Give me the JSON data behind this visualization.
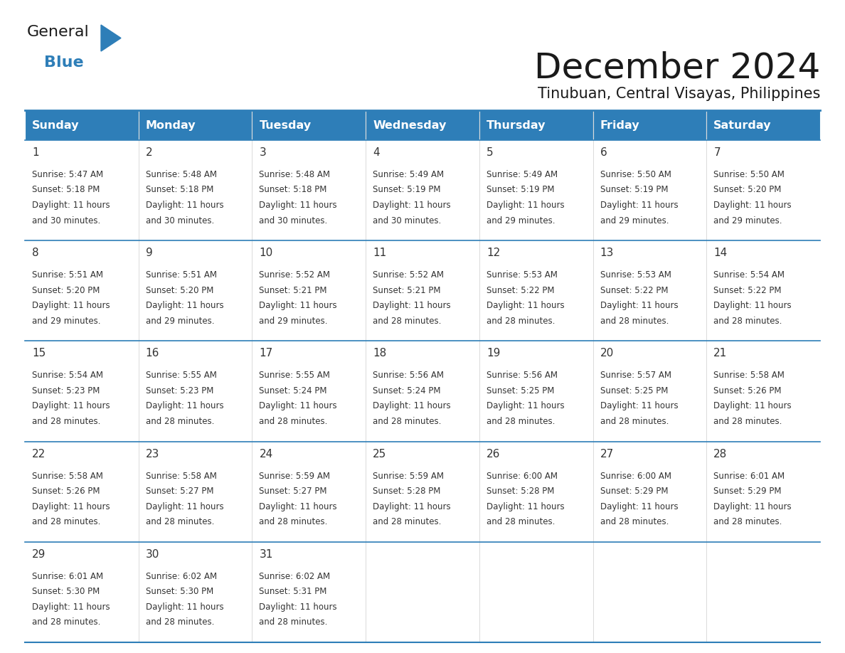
{
  "title": "December 2024",
  "subtitle": "Tinubuan, Central Visayas, Philippines",
  "days_of_week": [
    "Sunday",
    "Monday",
    "Tuesday",
    "Wednesday",
    "Thursday",
    "Friday",
    "Saturday"
  ],
  "header_bg": "#2E7EB8",
  "header_text": "#FFFFFF",
  "border_color": "#2E7EB8",
  "text_color": "#333333",
  "calendar": [
    [
      {
        "day": 1,
        "sunrise": "5:47 AM",
        "sunset": "5:18 PM",
        "daylight": "11 hours and 30 minutes."
      },
      {
        "day": 2,
        "sunrise": "5:48 AM",
        "sunset": "5:18 PM",
        "daylight": "11 hours and 30 minutes."
      },
      {
        "day": 3,
        "sunrise": "5:48 AM",
        "sunset": "5:18 PM",
        "daylight": "11 hours and 30 minutes."
      },
      {
        "day": 4,
        "sunrise": "5:49 AM",
        "sunset": "5:19 PM",
        "daylight": "11 hours and 30 minutes."
      },
      {
        "day": 5,
        "sunrise": "5:49 AM",
        "sunset": "5:19 PM",
        "daylight": "11 hours and 29 minutes."
      },
      {
        "day": 6,
        "sunrise": "5:50 AM",
        "sunset": "5:19 PM",
        "daylight": "11 hours and 29 minutes."
      },
      {
        "day": 7,
        "sunrise": "5:50 AM",
        "sunset": "5:20 PM",
        "daylight": "11 hours and 29 minutes."
      }
    ],
    [
      {
        "day": 8,
        "sunrise": "5:51 AM",
        "sunset": "5:20 PM",
        "daylight": "11 hours and 29 minutes."
      },
      {
        "day": 9,
        "sunrise": "5:51 AM",
        "sunset": "5:20 PM",
        "daylight": "11 hours and 29 minutes."
      },
      {
        "day": 10,
        "sunrise": "5:52 AM",
        "sunset": "5:21 PM",
        "daylight": "11 hours and 29 minutes."
      },
      {
        "day": 11,
        "sunrise": "5:52 AM",
        "sunset": "5:21 PM",
        "daylight": "11 hours and 28 minutes."
      },
      {
        "day": 12,
        "sunrise": "5:53 AM",
        "sunset": "5:22 PM",
        "daylight": "11 hours and 28 minutes."
      },
      {
        "day": 13,
        "sunrise": "5:53 AM",
        "sunset": "5:22 PM",
        "daylight": "11 hours and 28 minutes."
      },
      {
        "day": 14,
        "sunrise": "5:54 AM",
        "sunset": "5:22 PM",
        "daylight": "11 hours and 28 minutes."
      }
    ],
    [
      {
        "day": 15,
        "sunrise": "5:54 AM",
        "sunset": "5:23 PM",
        "daylight": "11 hours and 28 minutes."
      },
      {
        "day": 16,
        "sunrise": "5:55 AM",
        "sunset": "5:23 PM",
        "daylight": "11 hours and 28 minutes."
      },
      {
        "day": 17,
        "sunrise": "5:55 AM",
        "sunset": "5:24 PM",
        "daylight": "11 hours and 28 minutes."
      },
      {
        "day": 18,
        "sunrise": "5:56 AM",
        "sunset": "5:24 PM",
        "daylight": "11 hours and 28 minutes."
      },
      {
        "day": 19,
        "sunrise": "5:56 AM",
        "sunset": "5:25 PM",
        "daylight": "11 hours and 28 minutes."
      },
      {
        "day": 20,
        "sunrise": "5:57 AM",
        "sunset": "5:25 PM",
        "daylight": "11 hours and 28 minutes."
      },
      {
        "day": 21,
        "sunrise": "5:58 AM",
        "sunset": "5:26 PM",
        "daylight": "11 hours and 28 minutes."
      }
    ],
    [
      {
        "day": 22,
        "sunrise": "5:58 AM",
        "sunset": "5:26 PM",
        "daylight": "11 hours and 28 minutes."
      },
      {
        "day": 23,
        "sunrise": "5:58 AM",
        "sunset": "5:27 PM",
        "daylight": "11 hours and 28 minutes."
      },
      {
        "day": 24,
        "sunrise": "5:59 AM",
        "sunset": "5:27 PM",
        "daylight": "11 hours and 28 minutes."
      },
      {
        "day": 25,
        "sunrise": "5:59 AM",
        "sunset": "5:28 PM",
        "daylight": "11 hours and 28 minutes."
      },
      {
        "day": 26,
        "sunrise": "6:00 AM",
        "sunset": "5:28 PM",
        "daylight": "11 hours and 28 minutes."
      },
      {
        "day": 27,
        "sunrise": "6:00 AM",
        "sunset": "5:29 PM",
        "daylight": "11 hours and 28 minutes."
      },
      {
        "day": 28,
        "sunrise": "6:01 AM",
        "sunset": "5:29 PM",
        "daylight": "11 hours and 28 minutes."
      }
    ],
    [
      {
        "day": 29,
        "sunrise": "6:01 AM",
        "sunset": "5:30 PM",
        "daylight": "11 hours and 28 minutes."
      },
      {
        "day": 30,
        "sunrise": "6:02 AM",
        "sunset": "5:30 PM",
        "daylight": "11 hours and 28 minutes."
      },
      {
        "day": 31,
        "sunrise": "6:02 AM",
        "sunset": "5:31 PM",
        "daylight": "11 hours and 28 minutes."
      },
      null,
      null,
      null,
      null
    ]
  ],
  "num_rows": 5,
  "num_cols": 7,
  "logo_general_color": "#1a1a1a",
  "logo_blue_color": "#2E7EB8",
  "logo_triangle_color": "#2E7EB8"
}
